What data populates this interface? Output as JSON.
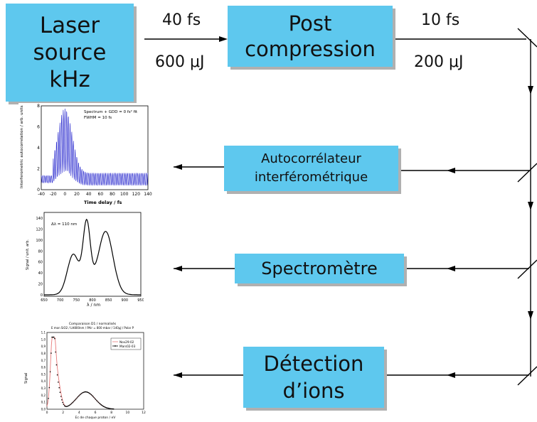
{
  "boxes": {
    "laser": "Laser\nsource\nkHz",
    "post": "Post\ncompression",
    "autocorr": "Autocorrélateur\ninterférométrique",
    "spectro": "Spectromètre",
    "ions": "Détection\nd’ions"
  },
  "beam1": {
    "duration": "40 fs",
    "energy": "600 μJ"
  },
  "beam2": {
    "duration": "10 fs",
    "energy": "200 μJ"
  },
  "colors": {
    "box": "#5ec8ee",
    "line": "#000000",
    "trace_blue": "#1f1fcc"
  },
  "plot_autocorr": {
    "annotation_1": "Spectrum + GDD = 0 fs² fit",
    "annotation_2": "FWHM = 10 fs",
    "xlabel": "Time delay / fs",
    "ylabel": "Interferometric autocorrelation / arb. units",
    "xticks": [
      "-40",
      "-20",
      "0",
      "20",
      "40",
      "60",
      "80",
      "100",
      "120",
      "140"
    ],
    "yticks": [
      "0",
      "2",
      "4",
      "6",
      "8"
    ]
  },
  "plot_spectrum": {
    "annotation": "Δλ = 110 nm",
    "xlabel": "λ / nm",
    "ylabel": "Signal / unit. arb.",
    "xticks": [
      "650",
      "700",
      "750",
      "800",
      "850",
      "900",
      "950"
    ],
    "yticks": [
      "0",
      "20",
      "40",
      "60",
      "80",
      "100",
      "120",
      "140"
    ]
  },
  "plot_ions": {
    "title_1": "Comparaison D1 / normalisés",
    "title_2": "E mon SiO2 / LH800nm / PAir = 800 mbar / 140μJ / Polar P",
    "legend": [
      "Nov29-02",
      "Mars02-03"
    ],
    "xlabel": "Ec de chaque proton / eV",
    "ylabel": "Signal",
    "xticks": [
      "0",
      "2",
      "4",
      "6",
      "8",
      "10",
      "12"
    ],
    "yticks": [
      "0,0",
      "0,1",
      "0,2",
      "0,3",
      "0,4",
      "0,5",
      "0,6",
      "0,7",
      "0,8",
      "0,9",
      "1,0",
      "1,1"
    ]
  }
}
